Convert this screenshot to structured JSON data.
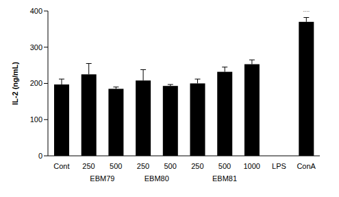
{
  "chart_data": {
    "type": "bar",
    "y_label": "IL-2 (ng/mL)",
    "categories": [
      "Cont",
      "250",
      "500",
      "250",
      "500",
      "250",
      "500",
      "1000",
      "LPS",
      "ConA"
    ],
    "values": [
      197,
      225,
      185,
      208,
      193,
      200,
      232,
      253,
      0,
      370
    ],
    "errors": [
      15,
      30,
      5,
      30,
      4,
      12,
      13,
      12,
      null,
      12
    ],
    "groups": [
      {
        "label": "EBM79",
        "start": 1,
        "end": 2
      },
      {
        "label": "EBM80",
        "start": 3,
        "end": 4
      },
      {
        "label": "EBM81",
        "start": 5,
        "end": 7
      }
    ],
    "annotations": [
      {
        "index": 9,
        "text": "**"
      }
    ],
    "color": "#000000",
    "ylim": [
      0,
      400
    ],
    "yticks": [
      0,
      100,
      200,
      300,
      400
    ],
    "grid": false
  }
}
